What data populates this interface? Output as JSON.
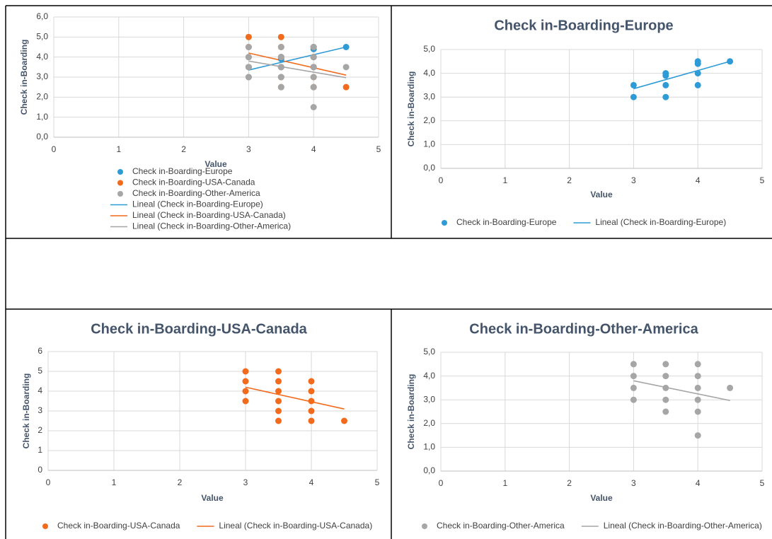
{
  "chart_data": [
    {
      "type": "scatter",
      "xlabel": "Value",
      "ylabel": "Check in-Boarding",
      "xlim": [
        0,
        5
      ],
      "ylim": [
        0,
        6
      ],
      "xticks": [
        0,
        1,
        2,
        3,
        4,
        5
      ],
      "yticks": [
        {
          "value": 0,
          "label": "0,0"
        },
        {
          "value": 1,
          "label": "1,0"
        },
        {
          "value": 2,
          "label": "2,0"
        },
        {
          "value": 3,
          "label": "3,0"
        },
        {
          "value": 4,
          "label": "4,0"
        },
        {
          "value": 5,
          "label": "5,0"
        },
        {
          "value": 6,
          "label": "6,0"
        }
      ],
      "grid": true,
      "legend": "bottom-column",
      "series": [
        {
          "name": "Check in-Boarding-Europe",
          "color": "#2e9bd6",
          "line": false,
          "x": [
            3,
            3,
            3.5,
            3.5,
            3.5,
            3.5,
            4,
            4,
            4,
            4,
            4.5
          ],
          "values": [
            3.5,
            3,
            4,
            3.9,
            3.5,
            3,
            4.5,
            4.4,
            4,
            3.5,
            4.5
          ]
        },
        {
          "name": "Check in-Boarding-USA-Canada",
          "color": "#f26b1d",
          "line": false,
          "x": [
            3,
            3,
            3,
            3,
            3.5,
            3.5,
            3.5,
            3.5,
            3.5,
            3.5,
            4,
            4,
            4,
            4,
            4,
            4.5
          ],
          "values": [
            5,
            4.5,
            4,
            3.5,
            5,
            4.5,
            4,
            3.5,
            3,
            2.5,
            4.5,
            4,
            3.5,
            3,
            2.5,
            2.5
          ]
        },
        {
          "name": "Check in-Boarding-Other-America",
          "color": "#a6a6a6",
          "line": false,
          "x": [
            3,
            3,
            3,
            3,
            3.5,
            3.5,
            3.5,
            3.5,
            3.5,
            4,
            4,
            4,
            4,
            4,
            4,
            4.5
          ],
          "values": [
            4.5,
            4,
            3.5,
            3,
            4.5,
            4,
            3.5,
            3,
            2.5,
            4.5,
            4,
            3.5,
            3,
            2.5,
            1.5,
            3.5
          ]
        },
        {
          "name": "Lineal (Check in-Boarding-Europe)",
          "color": "#2e9bd6",
          "line": true,
          "x": [
            3,
            4.5
          ],
          "values": [
            3.35,
            4.5
          ]
        },
        {
          "name": "Lineal (Check in-Boarding-USA-Canada)",
          "color": "#f26b1d",
          "line": true,
          "x": [
            3,
            4.5
          ],
          "values": [
            4.2,
            3.1
          ]
        },
        {
          "name": "Lineal (Check in-Boarding-Other-America)",
          "color": "#a6a6a6",
          "line": true,
          "x": [
            3,
            4.5
          ],
          "values": [
            3.8,
            2.97
          ]
        }
      ]
    },
    {
      "type": "scatter",
      "title": "Check in-Boarding-Europe",
      "xlabel": "Value",
      "ylabel": "Check in-Boarding",
      "xlim": [
        0,
        5
      ],
      "ylim": [
        0,
        5
      ],
      "xticks": [
        0,
        1,
        2,
        3,
        4,
        5
      ],
      "yticks": [
        {
          "value": 0,
          "label": "0,0"
        },
        {
          "value": 1,
          "label": "1,0"
        },
        {
          "value": 2,
          "label": "2,0"
        },
        {
          "value": 3,
          "label": "3,0"
        },
        {
          "value": 4,
          "label": "4,0"
        },
        {
          "value": 5,
          "label": "5,0"
        }
      ],
      "grid": true,
      "legend": "bottom",
      "series": [
        {
          "name": "Check in-Boarding-Europe",
          "color": "#2e9bd6",
          "line": false,
          "x": [
            3,
            3,
            3.5,
            3.5,
            3.5,
            3.5,
            4,
            4,
            4,
            4,
            4.5
          ],
          "values": [
            3.5,
            3,
            4,
            3.9,
            3.5,
            3,
            4.5,
            4.4,
            4,
            3.5,
            4.5
          ]
        },
        {
          "name": "Lineal (Check in-Boarding-Europe)",
          "color": "#2e9bd6",
          "line": true,
          "x": [
            3,
            4.5
          ],
          "values": [
            3.35,
            4.5
          ]
        }
      ]
    },
    {
      "type": "scatter",
      "title": "Check in-Boarding-USA-Canada",
      "xlabel": "Value",
      "ylabel": "Check in-Boarding",
      "xlim": [
        0,
        5
      ],
      "ylim": [
        0,
        6
      ],
      "xticks": [
        0,
        1,
        2,
        3,
        4,
        5
      ],
      "yticks": [
        0,
        1,
        2,
        3,
        4,
        5,
        6
      ],
      "grid": true,
      "legend": "bottom",
      "series": [
        {
          "name": "Check in-Boarding-USA-Canada",
          "color": "#f26b1d",
          "line": false,
          "x": [
            3,
            3,
            3,
            3,
            3.5,
            3.5,
            3.5,
            3.5,
            3.5,
            3.5,
            4,
            4,
            4,
            4,
            4,
            4.5
          ],
          "values": [
            5,
            4.5,
            4,
            3.5,
            5,
            4.5,
            4,
            3.5,
            3,
            2.5,
            4.5,
            4,
            3.5,
            3,
            2.5,
            2.5
          ]
        },
        {
          "name": "Lineal (Check in-Boarding-USA-Canada)",
          "color": "#f26b1d",
          "line": true,
          "x": [
            3,
            4.5
          ],
          "values": [
            4.2,
            3.1
          ]
        }
      ]
    },
    {
      "type": "scatter",
      "title": "Check in-Boarding-Other-America",
      "xlabel": "Value",
      "ylabel": "Check in-Boarding",
      "xlim": [
        0,
        5
      ],
      "ylim": [
        0,
        5
      ],
      "xticks": [
        0,
        1,
        2,
        3,
        4,
        5
      ],
      "yticks": [
        {
          "value": 0,
          "label": "0,0"
        },
        {
          "value": 1,
          "label": "1,0"
        },
        {
          "value": 2,
          "label": "2,0"
        },
        {
          "value": 3,
          "label": "3,0"
        },
        {
          "value": 4,
          "label": "4,0"
        },
        {
          "value": 5,
          "label": "5,0"
        }
      ],
      "grid": true,
      "legend": "bottom",
      "series": [
        {
          "name": "Check in-Boarding-Other-America",
          "color": "#a6a6a6",
          "line": false,
          "x": [
            3,
            3,
            3,
            3,
            3.5,
            3.5,
            3.5,
            3.5,
            3.5,
            4,
            4,
            4,
            4,
            4,
            4,
            4.5
          ],
          "values": [
            4.5,
            4,
            3.5,
            3,
            4.5,
            4,
            3.5,
            3,
            2.5,
            4.5,
            4,
            3.5,
            3,
            2.5,
            1.5,
            3.5
          ]
        },
        {
          "name": "Lineal (Check in-Boarding-Other-America)",
          "color": "#a6a6a6",
          "line": true,
          "x": [
            3,
            4.5
          ],
          "values": [
            3.8,
            2.97
          ]
        }
      ]
    }
  ]
}
